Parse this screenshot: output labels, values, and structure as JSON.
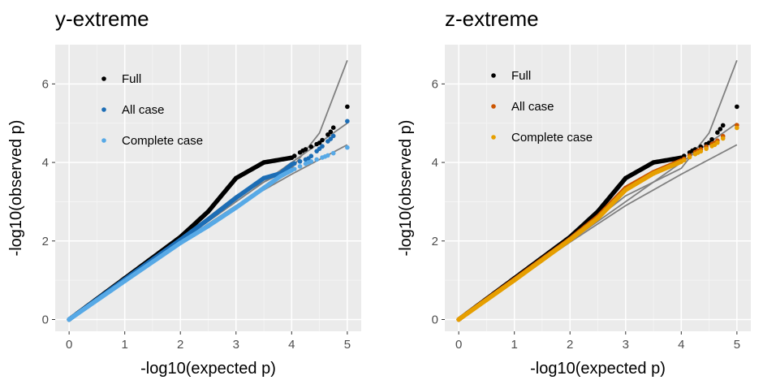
{
  "chart_data": [
    {
      "type": "scatter",
      "title": "y-extreme",
      "xlabel": "-log10(expected p)",
      "ylabel": "-log10(observed p)",
      "xlim": [
        -0.25,
        5.25
      ],
      "ylim": [
        -0.3,
        7.0
      ],
      "x_ticks": [
        0,
        1,
        2,
        3,
        4,
        5
      ],
      "y_ticks": [
        0,
        2,
        4,
        6
      ],
      "grid": true,
      "legend_position": "top-left",
      "reference_lines": {
        "diagonal": [
          [
            0,
            0
          ],
          [
            1,
            1
          ],
          [
            2,
            2
          ],
          [
            3,
            3
          ],
          [
            4,
            4
          ],
          [
            5,
            5
          ]
        ],
        "upper_band": [
          [
            0,
            0
          ],
          [
            1,
            1.02
          ],
          [
            2,
            2.05
          ],
          [
            3,
            3.15
          ],
          [
            4,
            3.85
          ],
          [
            4.5,
            4.75
          ],
          [
            5,
            6.6
          ]
        ],
        "lower_band": [
          [
            0,
            0
          ],
          [
            1,
            1.0
          ],
          [
            2,
            1.97
          ],
          [
            3,
            2.9
          ],
          [
            4,
            3.7
          ],
          [
            5,
            4.45
          ]
        ]
      },
      "series": [
        {
          "name": "Full",
          "color": "#000000",
          "points": [
            [
              0,
              0
            ],
            [
              1,
              1.05
            ],
            [
              2,
              2.1
            ],
            [
              2.5,
              2.75
            ],
            [
              3,
              3.6
            ],
            [
              3.5,
              4.0
            ],
            [
              4,
              4.12
            ],
            [
              4.2,
              4.3
            ],
            [
              4.5,
              4.5
            ],
            [
              4.7,
              4.78
            ],
            [
              5,
              5.42
            ]
          ]
        },
        {
          "name": "All case",
          "color": "#1c6db5",
          "points": [
            [
              0,
              0
            ],
            [
              1,
              1.02
            ],
            [
              2,
              2.03
            ],
            [
              2.5,
              2.55
            ],
            [
              3,
              3.1
            ],
            [
              3.5,
              3.6
            ],
            [
              3.8,
              3.72
            ],
            [
              4,
              3.95
            ],
            [
              4.3,
              4.1
            ],
            [
              4.5,
              4.35
            ],
            [
              4.7,
              4.6
            ],
            [
              5,
              5.05
            ]
          ]
        },
        {
          "name": "Complete case",
          "color": "#57a9e6",
          "points": [
            [
              0,
              0
            ],
            [
              1,
              0.98
            ],
            [
              2,
              1.95
            ],
            [
              2.5,
              2.38
            ],
            [
              3,
              2.85
            ],
            [
              3.5,
              3.35
            ],
            [
              3.8,
              3.65
            ],
            [
              4,
              3.8
            ],
            [
              4.3,
              4.0
            ],
            [
              4.6,
              4.15
            ],
            [
              5,
              4.38
            ]
          ]
        }
      ]
    },
    {
      "type": "scatter",
      "title": "z-extreme",
      "xlabel": "-log10(expected p)",
      "ylabel": "-log10(observed p)",
      "xlim": [
        -0.25,
        5.25
      ],
      "ylim": [
        -0.3,
        7.0
      ],
      "x_ticks": [
        0,
        1,
        2,
        3,
        4,
        5
      ],
      "y_ticks": [
        0,
        2,
        4,
        6
      ],
      "grid": true,
      "legend_position": "top-left",
      "reference_lines": {
        "diagonal": [
          [
            0,
            0
          ],
          [
            1,
            1
          ],
          [
            2,
            2
          ],
          [
            3,
            3
          ],
          [
            4,
            4
          ],
          [
            5,
            5
          ]
        ],
        "upper_band": [
          [
            0,
            0
          ],
          [
            1,
            1.02
          ],
          [
            2,
            2.05
          ],
          [
            3,
            3.15
          ],
          [
            4,
            3.85
          ],
          [
            4.5,
            4.75
          ],
          [
            5,
            6.6
          ]
        ],
        "lower_band": [
          [
            0,
            0
          ],
          [
            1,
            1.0
          ],
          [
            2,
            1.97
          ],
          [
            3,
            2.9
          ],
          [
            4,
            3.7
          ],
          [
            5,
            4.45
          ]
        ]
      },
      "series": [
        {
          "name": "Full",
          "color": "#000000",
          "points": [
            [
              0,
              0
            ],
            [
              1,
              1.05
            ],
            [
              2,
              2.1
            ],
            [
              2.5,
              2.75
            ],
            [
              3,
              3.6
            ],
            [
              3.5,
              4.0
            ],
            [
              4,
              4.12
            ],
            [
              4.2,
              4.3
            ],
            [
              4.5,
              4.5
            ],
            [
              4.7,
              4.85
            ],
            [
              5,
              5.42
            ]
          ]
        },
        {
          "name": "All case",
          "color": "#cc5500",
          "points": [
            [
              0,
              0
            ],
            [
              1,
              1.02
            ],
            [
              2,
              2.05
            ],
            [
              2.5,
              2.62
            ],
            [
              3,
              3.35
            ],
            [
              3.5,
              3.75
            ],
            [
              4,
              4.05
            ],
            [
              4.3,
              4.3
            ],
            [
              4.6,
              4.5
            ],
            [
              5,
              4.95
            ]
          ]
        },
        {
          "name": "Complete case",
          "color": "#e69f00",
          "points": [
            [
              0,
              0
            ],
            [
              1,
              1.0
            ],
            [
              2,
              2.03
            ],
            [
              2.5,
              2.58
            ],
            [
              3,
              3.3
            ],
            [
              3.5,
              3.72
            ],
            [
              4,
              4.02
            ],
            [
              4.3,
              4.25
            ],
            [
              4.6,
              4.45
            ],
            [
              5,
              4.88
            ]
          ]
        }
      ]
    }
  ]
}
